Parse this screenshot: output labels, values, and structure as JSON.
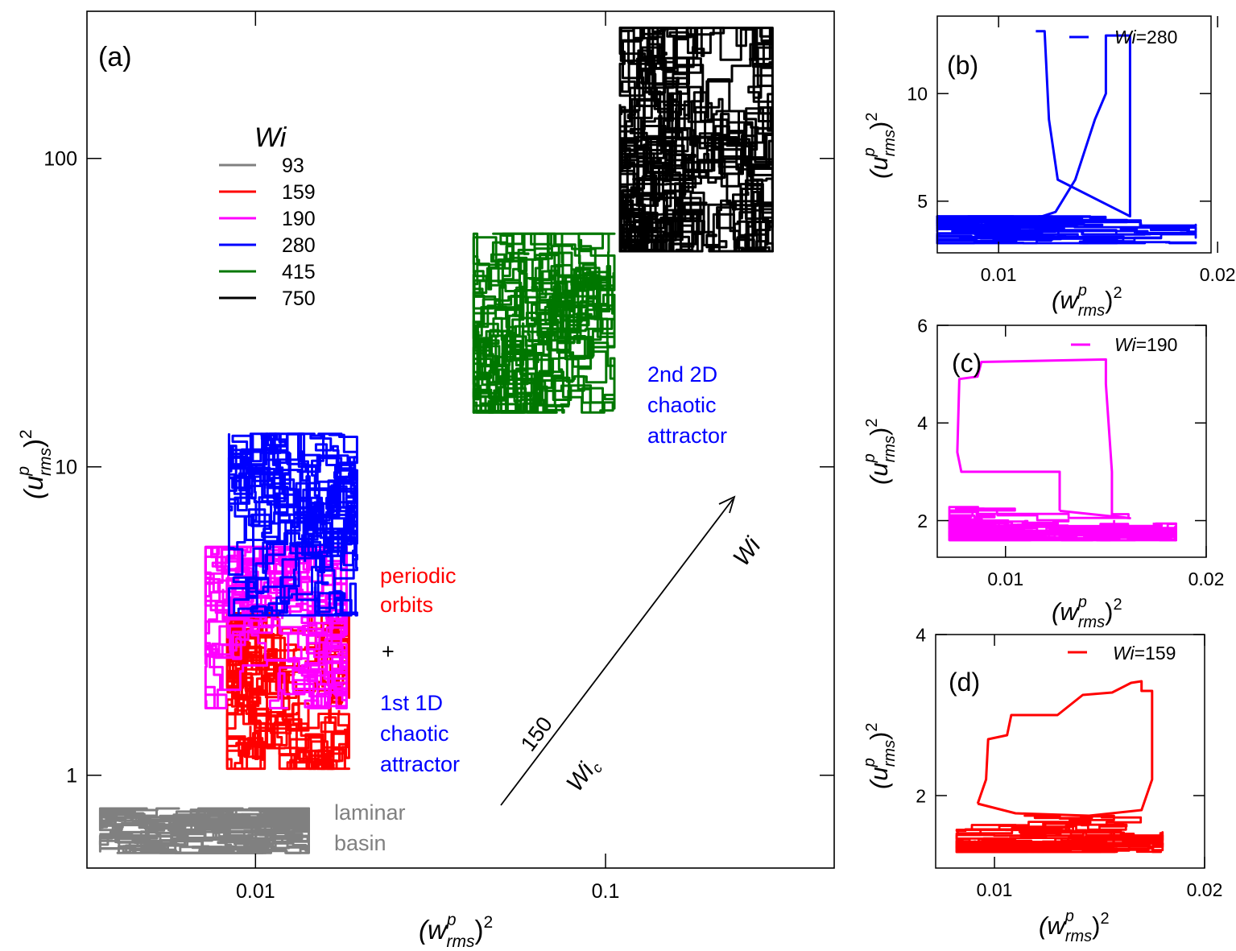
{
  "chart_data": [
    {
      "panel": "(a)",
      "type": "scatter",
      "xscale": "log",
      "yscale": "log",
      "xlim": [
        0.0033,
        0.45
      ],
      "ylim": [
        0.5,
        300
      ],
      "x_ticks": [
        {
          "v": 0.01,
          "label": "0.01"
        },
        {
          "v": 0.1,
          "label": "0.1"
        }
      ],
      "y_ticks": [
        {
          "v": 1,
          "label": "1"
        },
        {
          "v": 10,
          "label": "10"
        },
        {
          "v": 100,
          "label": "100"
        }
      ],
      "xlabel": {
        "pre": "(w",
        "sup": "p",
        "sub": "rms",
        "post": ")",
        "pow": "2"
      },
      "ylabel": {
        "pre": "(u",
        "sup": "p",
        "sub": "rms",
        "post": ")",
        "pow": "2"
      },
      "legend": {
        "title": "Wi",
        "position": "top-left"
      },
      "series": [
        {
          "name": "93",
          "color": "#808080",
          "x_range": [
            0.0036,
            0.0142
          ],
          "y_range": [
            0.56,
            0.78
          ],
          "n": 260
        },
        {
          "name": "159",
          "color": "#ff0000",
          "x_range": [
            0.0083,
            0.0185
          ],
          "y_range": [
            1.05,
            3.35
          ],
          "n": 200
        },
        {
          "name": "190",
          "color": "#ff00ff",
          "x_range": [
            0.0072,
            0.0182
          ],
          "y_range": [
            1.65,
            5.5
          ],
          "n": 200
        },
        {
          "name": "280",
          "color": "#0000ff",
          "x_range": [
            0.0084,
            0.0195
          ],
          "y_range": [
            3.3,
            12.8
          ],
          "n": 200
        },
        {
          "name": "415",
          "color": "#007700",
          "x_range": [
            0.042,
            0.106
          ],
          "y_range": [
            15,
            57
          ],
          "n": 260
        },
        {
          "name": "750",
          "color": "#000000",
          "x_range": [
            0.11,
            0.3
          ],
          "y_range": [
            50,
            265
          ],
          "n": 320
        }
      ],
      "annotations": [
        {
          "text": "laminar",
          "color": "#808080"
        },
        {
          "text": "basin",
          "color": "#808080"
        },
        {
          "text": "periodic",
          "color": "#ff0000"
        },
        {
          "text": "orbits",
          "color": "#ff0000"
        },
        {
          "text": "+",
          "color": "#000000"
        },
        {
          "text": "1st 1D",
          "color": "#0000ff"
        },
        {
          "text": "chaotic",
          "color": "#0000ff"
        },
        {
          "text": "attractor",
          "color": "#0000ff"
        },
        {
          "text": "2nd 2D",
          "color": "#0000ff"
        },
        {
          "text": "chaotic",
          "color": "#0000ff"
        },
        {
          "text": "attractor",
          "color": "#0000ff"
        }
      ],
      "arrow": {
        "label": "Wi",
        "start_label": "150",
        "start_sub_label": "Wi",
        "start_sub_sub": "c"
      }
    },
    {
      "panel": "(b)",
      "type": "line",
      "xlim": [
        0.0072,
        0.0197
      ],
      "ylim": [
        2.6,
        13.6
      ],
      "x_ticks": [
        {
          "v": 0.01,
          "label": "0.01"
        },
        {
          "v": 0.02,
          "label": "0.02"
        }
      ],
      "y_ticks": [
        {
          "v": 5,
          "label": "5"
        },
        {
          "v": 10,
          "label": "10"
        }
      ],
      "legend": {
        "prefix": "Wi",
        "value": "=280"
      },
      "color": "#0000ff",
      "loop": {
        "x": [
          0.0117,
          0.0126,
          0.0135,
          0.0144,
          0.0149,
          0.0149,
          0.016,
          0.016,
          0.016,
          0.0127,
          0.0123,
          0.0121,
          0.0117
        ]
      },
      "loop_y": [
        4.2,
        4.5,
        6.0,
        8.8,
        10.0,
        12.7,
        12.7,
        9.9,
        4.3,
        6.0,
        8.8,
        12.9,
        12.9
      ],
      "band": {
        "x_range": [
          0.0072,
          0.019
        ],
        "y_range": [
          3.05,
          4.3
        ]
      }
    },
    {
      "panel": "(c)",
      "type": "line",
      "xlim": [
        0.0066,
        0.02
      ],
      "ylim": [
        1.25,
        6.0
      ],
      "x_ticks": [
        {
          "v": 0.01,
          "label": "0.01"
        },
        {
          "v": 0.02,
          "label": "0.02"
        }
      ],
      "y_ticks": [
        {
          "v": 2,
          "label": "2"
        },
        {
          "v": 4,
          "label": "4"
        },
        {
          "v": 6,
          "label": "6"
        }
      ],
      "legend": {
        "prefix": "Wi",
        "value": "=190"
      },
      "color": "#ff00ff",
      "loop": {
        "x": [
          0.0127,
          0.0127,
          0.0078,
          0.0076,
          0.0077,
          0.0086,
          0.0088,
          0.015,
          0.015,
          0.0153,
          0.0153,
          0.0162,
          0.0127
        ]
      },
      "loop_y": [
        2.2,
        3.0,
        3.0,
        3.4,
        4.9,
        4.95,
        5.25,
        5.3,
        4.8,
        3.0,
        2.1,
        2.05,
        2.2
      ],
      "band": {
        "x_range": [
          0.0072,
          0.0185
        ],
        "y_range": [
          1.6,
          2.35
        ]
      }
    },
    {
      "panel": "(d)",
      "type": "line",
      "xlim": [
        0.0072,
        0.02
      ],
      "ylim": [
        1.1,
        4.0
      ],
      "x_ticks": [
        {
          "v": 0.01,
          "label": "0.01"
        },
        {
          "v": 0.02,
          "label": "0.02"
        }
      ],
      "y_ticks": [
        {
          "v": 2,
          "label": "2"
        },
        {
          "v": 4,
          "label": "4"
        }
      ],
      "legend": {
        "prefix": "Wi",
        "value": "=159"
      },
      "color": "#ff0000",
      "loop": {
        "x": [
          0.0092,
          0.0096,
          0.0097,
          0.0106,
          0.0108,
          0.013,
          0.0142,
          0.0156,
          0.0165,
          0.017,
          0.017,
          0.0175,
          0.0175,
          0.017,
          0.0145,
          0.011,
          0.0092
        ]
      },
      "loop_y": [
        1.9,
        2.2,
        2.7,
        2.75,
        3.0,
        3.0,
        3.25,
        3.28,
        3.4,
        3.42,
        3.3,
        3.3,
        2.2,
        1.82,
        1.75,
        1.78,
        1.9
      ],
      "band": {
        "x_range": [
          0.0082,
          0.018
        ],
        "y_range": [
          1.3,
          1.75
        ]
      }
    }
  ]
}
